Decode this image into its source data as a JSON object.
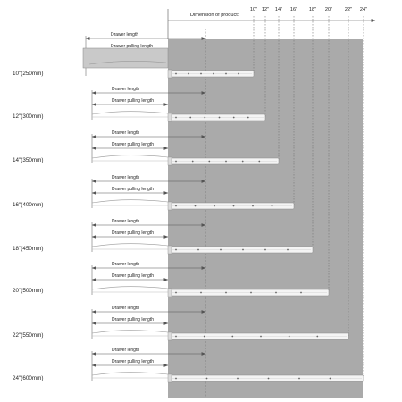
{
  "header": {
    "dimension_label": "Dimension of product:",
    "ticks": [
      "10\"",
      "12\"",
      "14\"",
      "16\"",
      "18\"",
      "20\"",
      "22\"",
      "24\""
    ]
  },
  "rows": [
    {
      "size": "10\"(250mm)",
      "drawer_length": "Drawer length",
      "pulling_length": "Drawer pulling length"
    },
    {
      "size": "12\"(300mm)",
      "drawer_length": "Drawer length",
      "pulling_length": "Drawer pulling length"
    },
    {
      "size": "14\"(350mm)",
      "drawer_length": "Drawer length",
      "pulling_length": "Drawer pulling length"
    },
    {
      "size": "16\"(400mm)",
      "drawer_length": "Drawer length",
      "pulling_length": "Drawer pulling length"
    },
    {
      "size": "18\"(450mm)",
      "drawer_length": "Drawer length",
      "pulling_length": "Drawer pulling length"
    },
    {
      "size": "20\"(500mm)",
      "drawer_length": "Drawer length",
      "pulling_length": "Drawer pulling length"
    },
    {
      "size": "22\"(550mm)",
      "drawer_length": "Drawer length",
      "pulling_length": "Drawer pulling length"
    },
    {
      "size": "24\"(600mm)",
      "drawer_length": "Drawer length",
      "pulling_length": "Drawer pulling length"
    }
  ],
  "colors": {
    "panel": "#aaaaaa",
    "rail": "#f4f4f4",
    "line": "#555555",
    "text": "#222222"
  }
}
